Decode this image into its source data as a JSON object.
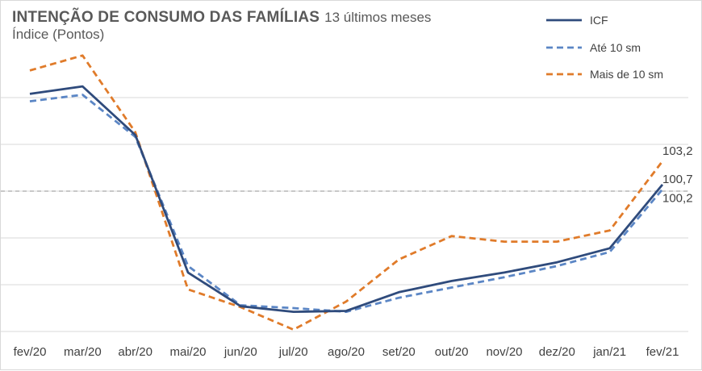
{
  "chart_data": {
    "type": "line",
    "title": "INTENÇÃO DE CONSUMO DAS FAMÍLIAS",
    "title_suffix": "13 últimos meses",
    "subtitle": "Índice (Pontos)",
    "categories": [
      "fev/20",
      "mar/20",
      "abr/20",
      "mai/20",
      "jun/20",
      "jul/20",
      "ago/20",
      "set/20",
      "out/20",
      "nov/20",
      "dez/20",
      "jan/21",
      "fev/21"
    ],
    "ylim": [
      85,
      115
    ],
    "grid": true,
    "reference_line": 100,
    "legend_position": "top-right",
    "series": [
      {
        "name": "ICF",
        "color": "#2F4B7C",
        "style": "solid",
        "values": [
          110.4,
          111.2,
          106.0,
          91.3,
          87.7,
          87.1,
          87.2,
          89.2,
          90.4,
          91.3,
          92.4,
          93.9,
          100.7
        ],
        "end_label": "100,7"
      },
      {
        "name": "Até 10 sm",
        "color": "#5B86C5",
        "style": "dashed",
        "values": [
          109.6,
          110.3,
          105.8,
          92.0,
          87.8,
          87.5,
          87.1,
          88.6,
          89.7,
          90.8,
          92.0,
          93.5,
          100.2
        ],
        "end_label": "100,2"
      },
      {
        "name": "Mais de 10 sm",
        "color": "#E07B2A",
        "style": "dashed",
        "values": [
          112.9,
          114.5,
          106.3,
          89.5,
          87.6,
          85.2,
          88.2,
          92.7,
          95.2,
          94.6,
          94.6,
          95.8,
          103.2
        ],
        "end_label": "103,2"
      }
    ]
  }
}
